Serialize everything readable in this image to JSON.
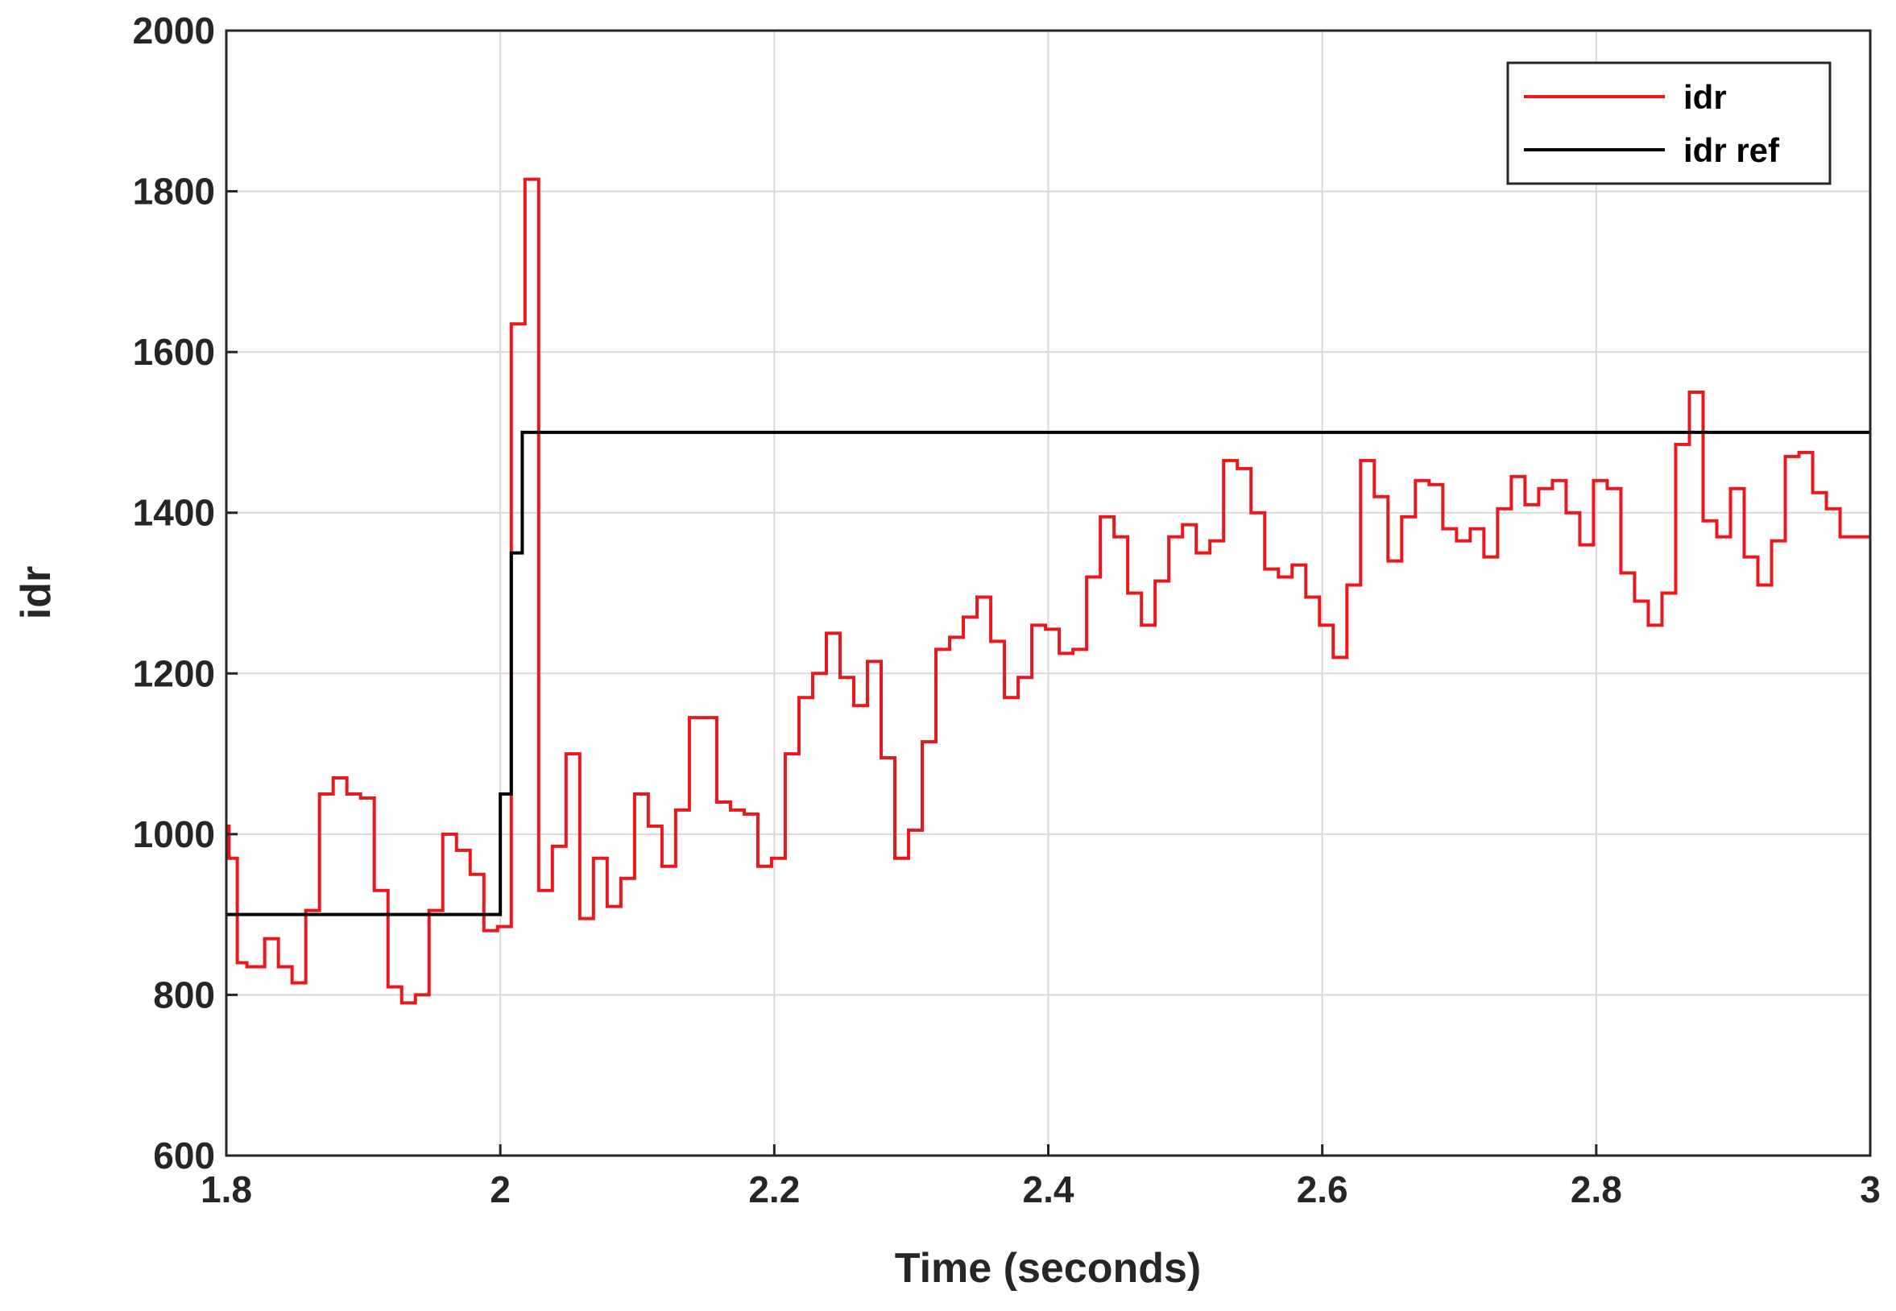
{
  "chart_data": {
    "type": "line",
    "drawstyle": "steps-post",
    "x_label": "Time (seconds)",
    "y_label": "idr",
    "xlim": [
      1.8,
      3
    ],
    "ylim": [
      600,
      2000
    ],
    "xticks": [
      1.8,
      2,
      2.2,
      2.4,
      2.6,
      2.8,
      3
    ],
    "yticks": [
      600,
      800,
      1000,
      1200,
      1400,
      1600,
      1800,
      2000
    ],
    "grid": true,
    "legend": "upper right",
    "series": [
      {
        "name": "idr",
        "color": "#e8191c",
        "x": [
          1.8,
          1.802,
          1.808,
          1.815,
          1.828,
          1.838,
          1.848,
          1.858,
          1.868,
          1.878,
          1.888,
          1.898,
          1.908,
          1.918,
          1.928,
          1.938,
          1.948,
          1.958,
          1.968,
          1.978,
          1.988,
          1.998,
          2.008,
          2.018,
          2.028,
          2.038,
          2.048,
          2.058,
          2.068,
          2.078,
          2.088,
          2.098,
          2.108,
          2.118,
          2.128,
          2.138,
          2.158,
          2.168,
          2.178,
          2.188,
          2.198,
          2.208,
          2.218,
          2.228,
          2.238,
          2.248,
          2.258,
          2.268,
          2.278,
          2.288,
          2.298,
          2.308,
          2.318,
          2.328,
          2.338,
          2.348,
          2.358,
          2.368,
          2.378,
          2.388,
          2.398,
          2.408,
          2.418,
          2.428,
          2.438,
          2.448,
          2.458,
          2.468,
          2.478,
          2.488,
          2.498,
          2.508,
          2.518,
          2.528,
          2.538,
          2.548,
          2.558,
          2.568,
          2.578,
          2.588,
          2.598,
          2.608,
          2.618,
          2.628,
          2.638,
          2.648,
          2.658,
          2.668,
          2.678,
          2.688,
          2.698,
          2.708,
          2.718,
          2.728,
          2.738,
          2.748,
          2.758,
          2.768,
          2.778,
          2.788,
          2.798,
          2.808,
          2.818,
          2.828,
          2.838,
          2.848,
          2.858,
          2.868,
          2.878,
          2.888,
          2.898,
          2.908,
          2.918,
          2.928,
          2.938,
          2.948,
          2.958,
          2.968,
          2.978,
          3
        ],
        "values": [
          1010,
          970,
          840,
          835,
          870,
          835,
          815,
          905,
          1050,
          1070,
          1050,
          1045,
          930,
          810,
          790,
          800,
          905,
          1000,
          980,
          950,
          880,
          885,
          1635,
          1815,
          930,
          985,
          1100,
          895,
          970,
          910,
          945,
          1050,
          1010,
          960,
          1030,
          1145,
          1040,
          1030,
          1025,
          960,
          970,
          1100,
          1170,
          1200,
          1250,
          1195,
          1160,
          1215,
          1095,
          970,
          1005,
          1115,
          1230,
          1245,
          1270,
          1295,
          1240,
          1170,
          1195,
          1260,
          1255,
          1225,
          1230,
          1320,
          1395,
          1370,
          1300,
          1260,
          1315,
          1370,
          1385,
          1350,
          1365,
          1465,
          1455,
          1400,
          1330,
          1320,
          1335,
          1295,
          1260,
          1220,
          1310,
          1465,
          1420,
          1340,
          1395,
          1440,
          1435,
          1380,
          1365,
          1380,
          1345,
          1405,
          1445,
          1410,
          1430,
          1440,
          1400,
          1360,
          1440,
          1430,
          1325,
          1290,
          1260,
          1300,
          1485,
          1550,
          1390,
          1370,
          1430,
          1345,
          1310,
          1365,
          1470,
          1475,
          1425,
          1405,
          1370,
          1370
        ]
      },
      {
        "name": "idr ref",
        "color": "#000000",
        "x": [
          1.8,
          2.0,
          2.008,
          2.016,
          3
        ],
        "values": [
          900,
          1050,
          1350,
          1500,
          1500
        ]
      }
    ]
  }
}
